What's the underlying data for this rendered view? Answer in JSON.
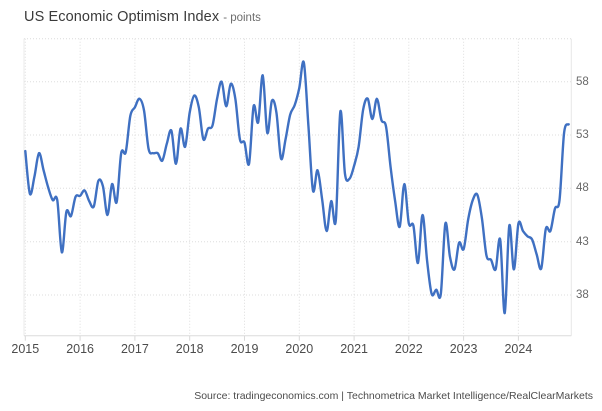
{
  "header": {
    "title": "US Economic Optimism Index",
    "subtitle": "- points"
  },
  "source": {
    "text": "Source: tradingeconomics.com | Technometrica Market Intelligence/RealClearMarkets"
  },
  "chart_data": {
    "type": "line",
    "title": "US Economic Optimism Index",
    "ylabel": "points",
    "frequency": "monthly",
    "x_start_month": "2015-01",
    "x_end_month": "2024-12",
    "x_tick_labels": [
      "2015",
      "2016",
      "2017",
      "2018",
      "2019",
      "2020",
      "2021",
      "2022",
      "2023",
      "2024"
    ],
    "y_tick_labels": [
      58,
      53,
      48,
      43,
      38
    ],
    "y_range": [
      34.2,
      62.0
    ],
    "grid": "dotted",
    "legend_position": "none",
    "line_color": "#3F70C2",
    "grid_color": "#dedede",
    "axis_color": "#dcdcdc",
    "series": [
      {
        "name": "US Economic Optimism Index",
        "values": [
          51.5,
          47.5,
          49.1,
          51.3,
          49.7,
          48.1,
          46.9,
          46.9,
          42.0,
          45.8,
          45.4,
          47.2,
          47.3,
          47.8,
          46.8,
          46.3,
          48.7,
          48.2,
          45.5,
          48.4,
          46.7,
          51.3,
          51.4,
          54.8,
          55.6,
          56.4,
          55.3,
          51.7,
          51.3,
          51.3,
          50.6,
          52.2,
          53.4,
          50.3,
          53.6,
          51.9,
          55.1,
          56.7,
          55.6,
          52.6,
          53.6,
          53.9,
          56.4,
          58.0,
          55.7,
          57.8,
          56.4,
          52.6,
          52.3,
          50.3,
          55.7,
          54.2,
          58.6,
          53.2,
          56.2,
          55.1,
          50.8,
          52.6,
          54.9,
          55.8,
          57.4,
          59.8,
          53.9,
          47.8,
          49.7,
          47.0,
          44.0,
          46.8,
          45.0,
          55.2,
          49.4,
          48.9,
          50.1,
          51.9,
          55.4,
          56.4,
          54.5,
          56.4,
          54.4,
          53.8,
          50.0,
          46.8,
          44.4,
          48.4,
          44.7,
          44.5,
          41.0,
          45.5,
          41.2,
          38.1,
          38.5,
          38.1,
          44.7,
          41.6,
          40.4,
          42.9,
          42.3,
          45.1,
          46.9,
          47.4,
          45.2,
          41.7,
          41.3,
          40.4,
          43.2,
          36.3,
          44.5,
          40.4,
          44.7,
          44.0,
          43.5,
          43.2,
          41.8,
          40.5,
          44.2,
          44.0,
          46.1,
          46.9,
          53.2,
          54.0
        ]
      }
    ]
  }
}
